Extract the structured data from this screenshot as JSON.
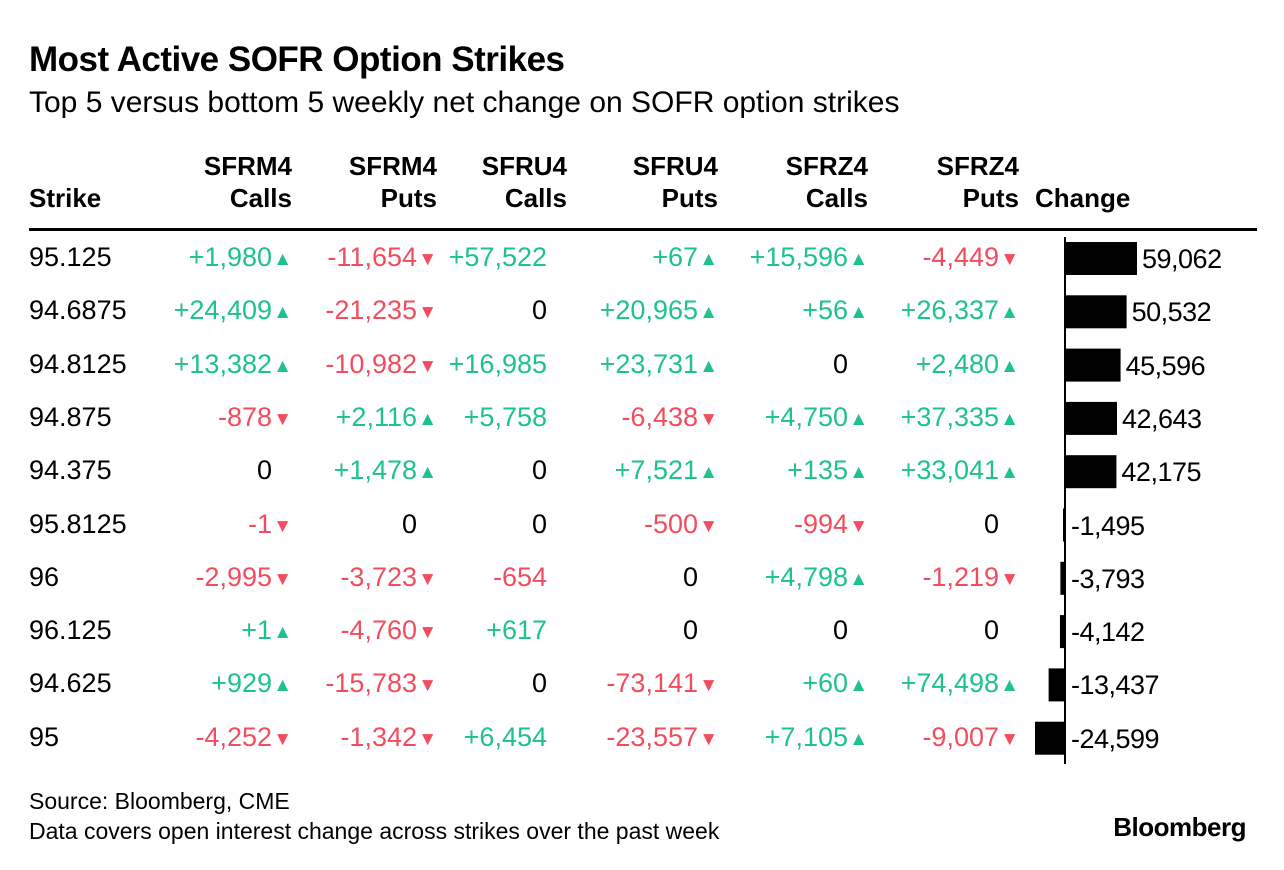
{
  "title": "Most Active SOFR Option Strikes",
  "subtitle": "Top 5 versus bottom 5 weekly net change on SOFR option strikes",
  "headers": {
    "strike": "Strike",
    "columns": [
      {
        "line1": "SFRM4",
        "line2": "Calls"
      },
      {
        "line1": "SFRM4",
        "line2": "Puts"
      },
      {
        "line1": "SFRU4",
        "line2": "Calls"
      },
      {
        "line1": "SFRU4",
        "line2": "Puts"
      },
      {
        "line1": "SFRZ4",
        "line2": "Calls"
      },
      {
        "line1": "SFRZ4",
        "line2": "Puts"
      }
    ],
    "change": "Change"
  },
  "colors": {
    "positive": "#1ec28b",
    "negative": "#f24d5e",
    "bar": "#000000"
  },
  "chart_data": {
    "type": "table",
    "title": "Most Active SOFR Option Strikes",
    "subtitle": "Top 5 versus bottom 5 weekly net change on SOFR option strikes",
    "columns": [
      "Strike",
      "SFRM4 Calls",
      "SFRM4 Puts",
      "SFRU4 Calls",
      "SFRU4 Puts",
      "SFRZ4 Calls",
      "SFRZ4 Puts",
      "Change"
    ],
    "rows": [
      {
        "strike": "95.125",
        "cells": [
          {
            "text": "+1,980",
            "dir": "up"
          },
          {
            "text": "-11,654",
            "dir": "down"
          },
          {
            "text": "+57,522",
            "dir": "up-noarrow"
          },
          {
            "text": "+67",
            "dir": "up"
          },
          {
            "text": "+15,596",
            "dir": "up"
          },
          {
            "text": "-4,449",
            "dir": "down"
          }
        ],
        "change": 59062,
        "change_label": "59,062"
      },
      {
        "strike": "94.6875",
        "cells": [
          {
            "text": "+24,409",
            "dir": "up"
          },
          {
            "text": "-21,235",
            "dir": "down"
          },
          {
            "text": "0",
            "dir": "zero"
          },
          {
            "text": "+20,965",
            "dir": "up"
          },
          {
            "text": "+56",
            "dir": "up"
          },
          {
            "text": "+26,337",
            "dir": "up"
          }
        ],
        "change": 50532,
        "change_label": "50,532"
      },
      {
        "strike": "94.8125",
        "cells": [
          {
            "text": "+13,382",
            "dir": "up"
          },
          {
            "text": "-10,982",
            "dir": "down"
          },
          {
            "text": "+16,985",
            "dir": "up-noarrow"
          },
          {
            "text": "+23,731",
            "dir": "up"
          },
          {
            "text": "0",
            "dir": "zero"
          },
          {
            "text": "+2,480",
            "dir": "up"
          }
        ],
        "change": 45596,
        "change_label": "45,596"
      },
      {
        "strike": "94.875",
        "cells": [
          {
            "text": "-878",
            "dir": "down"
          },
          {
            "text": "+2,116",
            "dir": "up"
          },
          {
            "text": "+5,758",
            "dir": "up-noarrow"
          },
          {
            "text": "-6,438",
            "dir": "down"
          },
          {
            "text": "+4,750",
            "dir": "up"
          },
          {
            "text": "+37,335",
            "dir": "up"
          }
        ],
        "change": 42643,
        "change_label": "42,643"
      },
      {
        "strike": "94.375",
        "cells": [
          {
            "text": "0",
            "dir": "zero"
          },
          {
            "text": "+1,478",
            "dir": "up"
          },
          {
            "text": "0",
            "dir": "zero"
          },
          {
            "text": "+7,521",
            "dir": "up"
          },
          {
            "text": "+135",
            "dir": "up"
          },
          {
            "text": "+33,041",
            "dir": "up"
          }
        ],
        "change": 42175,
        "change_label": "42,175"
      },
      {
        "strike": "95.8125",
        "cells": [
          {
            "text": "-1",
            "dir": "down"
          },
          {
            "text": "0",
            "dir": "zero"
          },
          {
            "text": "0",
            "dir": "zero"
          },
          {
            "text": "-500",
            "dir": "down"
          },
          {
            "text": "-994",
            "dir": "down"
          },
          {
            "text": "0",
            "dir": "zero"
          }
        ],
        "change": -1495,
        "change_label": "-1,495"
      },
      {
        "strike": "96",
        "cells": [
          {
            "text": "-2,995",
            "dir": "down"
          },
          {
            "text": "-3,723",
            "dir": "down"
          },
          {
            "text": "-654",
            "dir": "down-noarrow"
          },
          {
            "text": "0",
            "dir": "zero"
          },
          {
            "text": "+4,798",
            "dir": "up"
          },
          {
            "text": "-1,219",
            "dir": "down"
          }
        ],
        "change": -3793,
        "change_label": "-3,793"
      },
      {
        "strike": "96.125",
        "cells": [
          {
            "text": "+1",
            "dir": "up"
          },
          {
            "text": "-4,760",
            "dir": "down"
          },
          {
            "text": "+617",
            "dir": "up-noarrow"
          },
          {
            "text": "0",
            "dir": "zero"
          },
          {
            "text": "0",
            "dir": "zero"
          },
          {
            "text": "0",
            "dir": "zero"
          }
        ],
        "change": -4142,
        "change_label": "-4,142"
      },
      {
        "strike": "94.625",
        "cells": [
          {
            "text": "+929",
            "dir": "up"
          },
          {
            "text": "-15,783",
            "dir": "down"
          },
          {
            "text": "0",
            "dir": "zero"
          },
          {
            "text": "-73,141",
            "dir": "down"
          },
          {
            "text": "+60",
            "dir": "up"
          },
          {
            "text": "+74,498",
            "dir": "up"
          }
        ],
        "change": -13437,
        "change_label": "-13,437"
      },
      {
        "strike": "95",
        "cells": [
          {
            "text": "-4,252",
            "dir": "down"
          },
          {
            "text": "-1,342",
            "dir": "down"
          },
          {
            "text": "+6,454",
            "dir": "up-noarrow"
          },
          {
            "text": "-23,557",
            "dir": "down"
          },
          {
            "text": "+7,105",
            "dir": "up"
          },
          {
            "text": "-9,007",
            "dir": "down"
          }
        ],
        "change": -24599,
        "change_label": "-24,599"
      }
    ]
  },
  "footer": {
    "source": "Source: Bloomberg, CME",
    "note": "Data covers open interest change across strikes over the past week",
    "brand": "Bloomberg"
  }
}
